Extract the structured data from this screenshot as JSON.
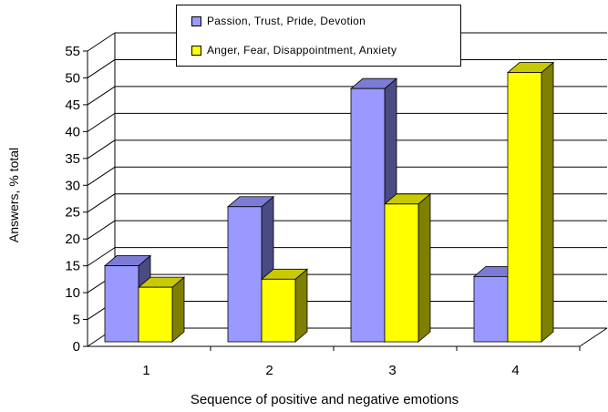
{
  "chart_data": {
    "type": "bar",
    "categories": [
      "1",
      "2",
      "3",
      "4"
    ],
    "series": [
      {
        "name": "Passion, Trust, Pride, Devotion",
        "values": [
          14.5,
          25.5,
          47.5,
          12.5
        ]
      },
      {
        "name": "Anger, Fear, Disappointment, Anxiety",
        "values": [
          10.5,
          12,
          26,
          50.5
        ]
      }
    ],
    "title": "",
    "xlabel": "Sequence of positive and negative emotions",
    "ylabel": "Answers, % total",
    "ylim": [
      0,
      55
    ],
    "yticks": [
      "0",
      "5",
      "10",
      "15",
      "20",
      "25",
      "30",
      "35",
      "40",
      "45",
      "50",
      "55"
    ],
    "grid": true,
    "three_d": true,
    "legend_position": "top-center",
    "colors": {
      "series_fill": [
        "#9999ff",
        "#ffff00"
      ],
      "series_side": [
        "#4b4b84",
        "#7f7f00"
      ],
      "series_top": [
        "#7c7cd6",
        "#c9c900"
      ],
      "grid": "#000000",
      "background": "#ffffff"
    }
  }
}
